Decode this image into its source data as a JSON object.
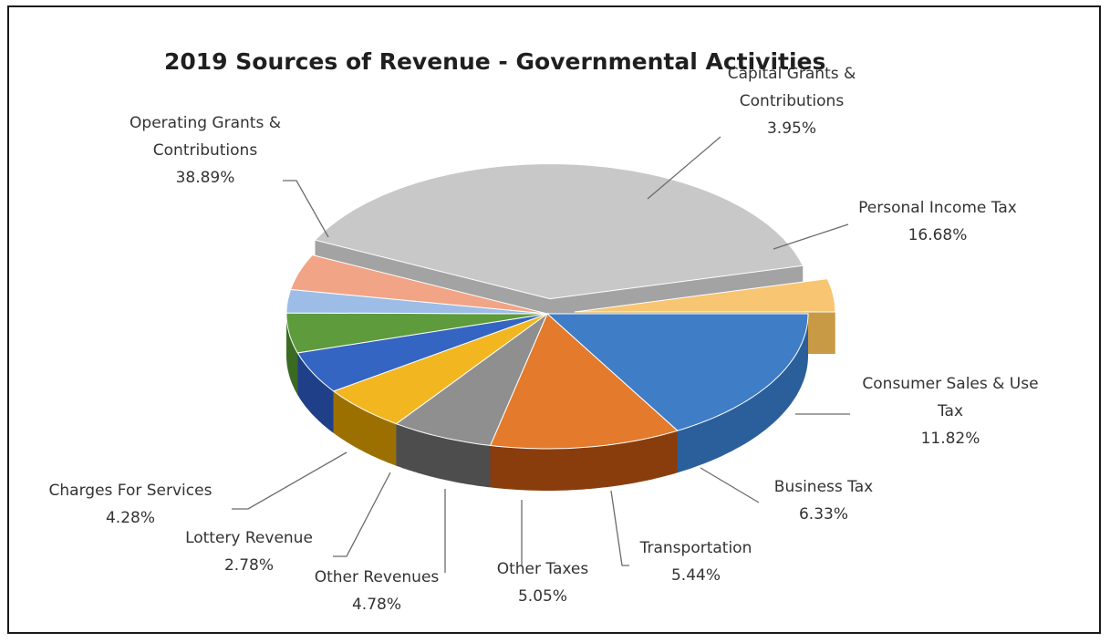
{
  "chart_data": {
    "type": "pie",
    "title": "2019 Sources of Revenue - Governmental Activities",
    "slices": [
      {
        "label_lines": [
          "Personal Income Tax"
        ],
        "value_label": "16.68%",
        "value": 16.68,
        "color": "#3f7dc6",
        "side": "#2a5f9c",
        "exploded": false
      },
      {
        "label_lines": [
          "Consumer Sales & Use",
          "Tax"
        ],
        "value_label": "11.82%",
        "value": 11.82,
        "color": "#e37a2c",
        "side": "#8a3d0c",
        "exploded": false
      },
      {
        "label_lines": [
          "Business Tax"
        ],
        "value_label": "6.33%",
        "value": 6.33,
        "color": "#8f8f8f",
        "side": "#4d4d4d",
        "exploded": false
      },
      {
        "label_lines": [
          "Transportation"
        ],
        "value_label": "5.44%",
        "value": 5.44,
        "color": "#f2b620",
        "side": "#9c7000",
        "exploded": false
      },
      {
        "label_lines": [
          "Other Taxes"
        ],
        "value_label": "5.05%",
        "value": 5.05,
        "color": "#3565c2",
        "side": "#1f4088",
        "exploded": false
      },
      {
        "label_lines": [
          "Other Revenues"
        ],
        "value_label": "4.78%",
        "value": 4.78,
        "color": "#5d9b3c",
        "side": "#3b6a22",
        "exploded": false
      },
      {
        "label_lines": [
          "Lottery Revenue"
        ],
        "value_label": "2.78%",
        "value": 2.78,
        "color": "#9dbde6",
        "side": "#6a8fc0",
        "exploded": false
      },
      {
        "label_lines": [
          "Charges For Services"
        ],
        "value_label": "4.28%",
        "value": 4.28,
        "color": "#f1a486",
        "side": "#c47556",
        "exploded": false
      },
      {
        "label_lines": [
          "Operating Grants &",
          "Contributions"
        ],
        "value_label": "38.89%",
        "value": 38.89,
        "color": "#c8c8c8",
        "side": "#a3a3a3",
        "exploded": true
      },
      {
        "label_lines": [
          "Capital Grants &",
          "Contributions"
        ],
        "value_label": "3.95%",
        "value": 3.95,
        "color": "#f8c572",
        "side": "#c99a45",
        "exploded": true
      }
    ],
    "legend": "none",
    "data_labels": "outside-with-leaders",
    "style": "3d-exploded"
  }
}
